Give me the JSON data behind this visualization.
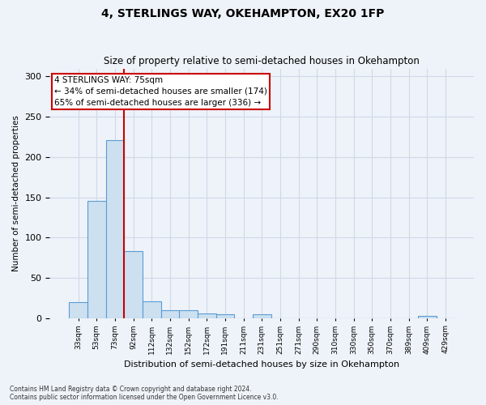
{
  "title": "4, STERLINGS WAY, OKEHAMPTON, EX20 1FP",
  "subtitle": "Size of property relative to semi-detached houses in Okehampton",
  "xlabel": "Distribution of semi-detached houses by size in Okehampton",
  "ylabel": "Number of semi-detached properties",
  "footnote1": "Contains HM Land Registry data © Crown copyright and database right 2024.",
  "footnote2": "Contains public sector information licensed under the Open Government Licence v3.0.",
  "categories": [
    "33sqm",
    "53sqm",
    "73sqm",
    "92sqm",
    "112sqm",
    "132sqm",
    "152sqm",
    "172sqm",
    "191sqm",
    "211sqm",
    "231sqm",
    "251sqm",
    "271sqm",
    "290sqm",
    "310sqm",
    "330sqm",
    "350sqm",
    "370sqm",
    "389sqm",
    "409sqm",
    "429sqm"
  ],
  "values": [
    20,
    146,
    221,
    83,
    21,
    10,
    10,
    6,
    5,
    0,
    5,
    0,
    0,
    0,
    0,
    0,
    0,
    0,
    0,
    3,
    0
  ],
  "bar_color": "#cce0f0",
  "bar_edge_color": "#5b9bd5",
  "grid_color": "#d0d8e8",
  "annotation_text": "4 STERLINGS WAY: 75sqm\n← 34% of semi-detached houses are smaller (174)\n65% of semi-detached houses are larger (336) →",
  "annotation_box_color": "#ffffff",
  "annotation_box_edge": "#cc0000",
  "vline_color": "#cc0000",
  "vline_index": 2.5,
  "ylim": [
    0,
    310
  ],
  "yticks": [
    0,
    50,
    100,
    150,
    200,
    250,
    300
  ],
  "background_color": "#eef3f9",
  "title_fontsize": 10,
  "subtitle_fontsize": 8.5
}
